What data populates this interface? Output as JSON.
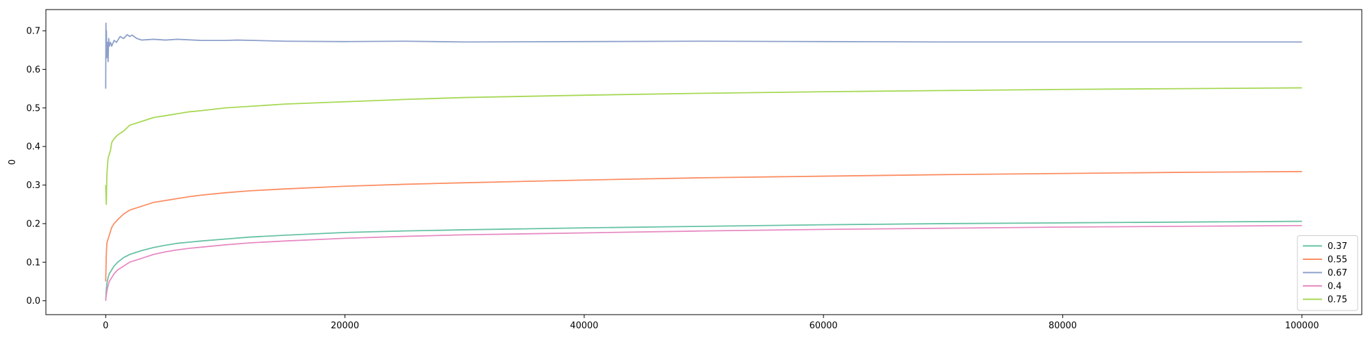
{
  "chart_data": {
    "type": "line",
    "title": "",
    "xlabel": "",
    "ylabel": "0",
    "xlim": [
      -5000,
      105000
    ],
    "ylim": [
      -0.036,
      0.755
    ],
    "xticks": [
      0,
      20000,
      40000,
      60000,
      80000,
      100000
    ],
    "xtick_labels": [
      "0",
      "20000",
      "40000",
      "60000",
      "80000",
      "100000"
    ],
    "yticks": [
      0.0,
      0.1,
      0.2,
      0.3,
      0.4,
      0.5,
      0.6,
      0.7
    ],
    "ytick_labels": [
      "0.0",
      "0.1",
      "0.2",
      "0.3",
      "0.4",
      "0.5",
      "0.6",
      "0.7"
    ],
    "grid": false,
    "legend_position": "lower-right",
    "series": [
      {
        "name": "0.37",
        "color": "#66c2a5",
        "x": [
          0,
          50,
          100,
          200,
          300,
          500,
          700,
          1000,
          1500,
          2000,
          3000,
          4000,
          5000,
          6000,
          7000,
          8000,
          10000,
          12000,
          15000,
          20000,
          25000,
          30000,
          40000,
          50000,
          60000,
          70000,
          80000,
          90000,
          100000
        ],
        "y": [
          0.0,
          0.03,
          0.045,
          0.06,
          0.07,
          0.08,
          0.09,
          0.1,
          0.112,
          0.12,
          0.13,
          0.138,
          0.144,
          0.149,
          0.152,
          0.155,
          0.16,
          0.165,
          0.17,
          0.177,
          0.181,
          0.184,
          0.189,
          0.193,
          0.197,
          0.2,
          0.202,
          0.204,
          0.206
        ]
      },
      {
        "name": "0.55",
        "color": "#fc8d62",
        "x": [
          0,
          50,
          100,
          200,
          300,
          500,
          700,
          1000,
          1500,
          2000,
          3000,
          4000,
          5000,
          6000,
          7000,
          8000,
          10000,
          12000,
          15000,
          20000,
          25000,
          30000,
          40000,
          50000,
          60000,
          70000,
          80000,
          90000,
          100000
        ],
        "y": [
          0.05,
          0.12,
          0.15,
          0.16,
          0.17,
          0.19,
          0.2,
          0.21,
          0.225,
          0.235,
          0.245,
          0.255,
          0.26,
          0.265,
          0.27,
          0.274,
          0.28,
          0.285,
          0.29,
          0.297,
          0.302,
          0.306,
          0.313,
          0.319,
          0.323,
          0.327,
          0.33,
          0.333,
          0.335
        ]
      },
      {
        "name": "0.67",
        "color": "#8da0cb",
        "x": [
          0,
          20,
          40,
          60,
          80,
          100,
          150,
          200,
          250,
          300,
          400,
          500,
          700,
          900,
          1200,
          1500,
          1800,
          2000,
          2200,
          2600,
          3000,
          4000,
          5000,
          6000,
          8000,
          10000,
          11000,
          15000,
          20000,
          25000,
          30000,
          40000,
          50000,
          60000,
          70000,
          80000,
          90000,
          100000
        ],
        "y": [
          0.55,
          0.72,
          0.65,
          0.7,
          0.63,
          0.66,
          0.67,
          0.62,
          0.68,
          0.66,
          0.67,
          0.66,
          0.675,
          0.67,
          0.685,
          0.68,
          0.69,
          0.685,
          0.689,
          0.68,
          0.676,
          0.678,
          0.676,
          0.678,
          0.675,
          0.675,
          0.676,
          0.673,
          0.672,
          0.673,
          0.671,
          0.672,
          0.673,
          0.672,
          0.671,
          0.671,
          0.671,
          0.671
        ]
      },
      {
        "name": "0.4",
        "color": "#e78ac3",
        "x": [
          0,
          50,
          100,
          200,
          300,
          500,
          700,
          1000,
          1500,
          2000,
          3000,
          4000,
          5000,
          6000,
          7000,
          8000,
          10000,
          12000,
          15000,
          20000,
          25000,
          30000,
          40000,
          50000,
          60000,
          70000,
          80000,
          90000,
          100000
        ],
        "y": [
          0.0,
          0.015,
          0.025,
          0.04,
          0.05,
          0.06,
          0.07,
          0.08,
          0.09,
          0.1,
          0.11,
          0.12,
          0.127,
          0.132,
          0.136,
          0.139,
          0.145,
          0.15,
          0.155,
          0.162,
          0.167,
          0.171,
          0.176,
          0.181,
          0.185,
          0.188,
          0.191,
          0.193,
          0.195
        ]
      },
      {
        "name": "0.75",
        "color": "#a6d854",
        "x": [
          0,
          50,
          100,
          150,
          200,
          300,
          400,
          500,
          700,
          1000,
          1500,
          2000,
          2500,
          3000,
          4000,
          5000,
          6000,
          7000,
          8000,
          10000,
          12000,
          15000,
          20000,
          25000,
          30000,
          40000,
          50000,
          60000,
          70000,
          80000,
          90000,
          100000
        ],
        "y": [
          0.3,
          0.25,
          0.33,
          0.35,
          0.37,
          0.38,
          0.39,
          0.41,
          0.42,
          0.43,
          0.44,
          0.455,
          0.46,
          0.465,
          0.475,
          0.48,
          0.485,
          0.49,
          0.493,
          0.5,
          0.504,
          0.51,
          0.516,
          0.522,
          0.527,
          0.533,
          0.538,
          0.542,
          0.545,
          0.548,
          0.55,
          0.552
        ]
      }
    ]
  }
}
